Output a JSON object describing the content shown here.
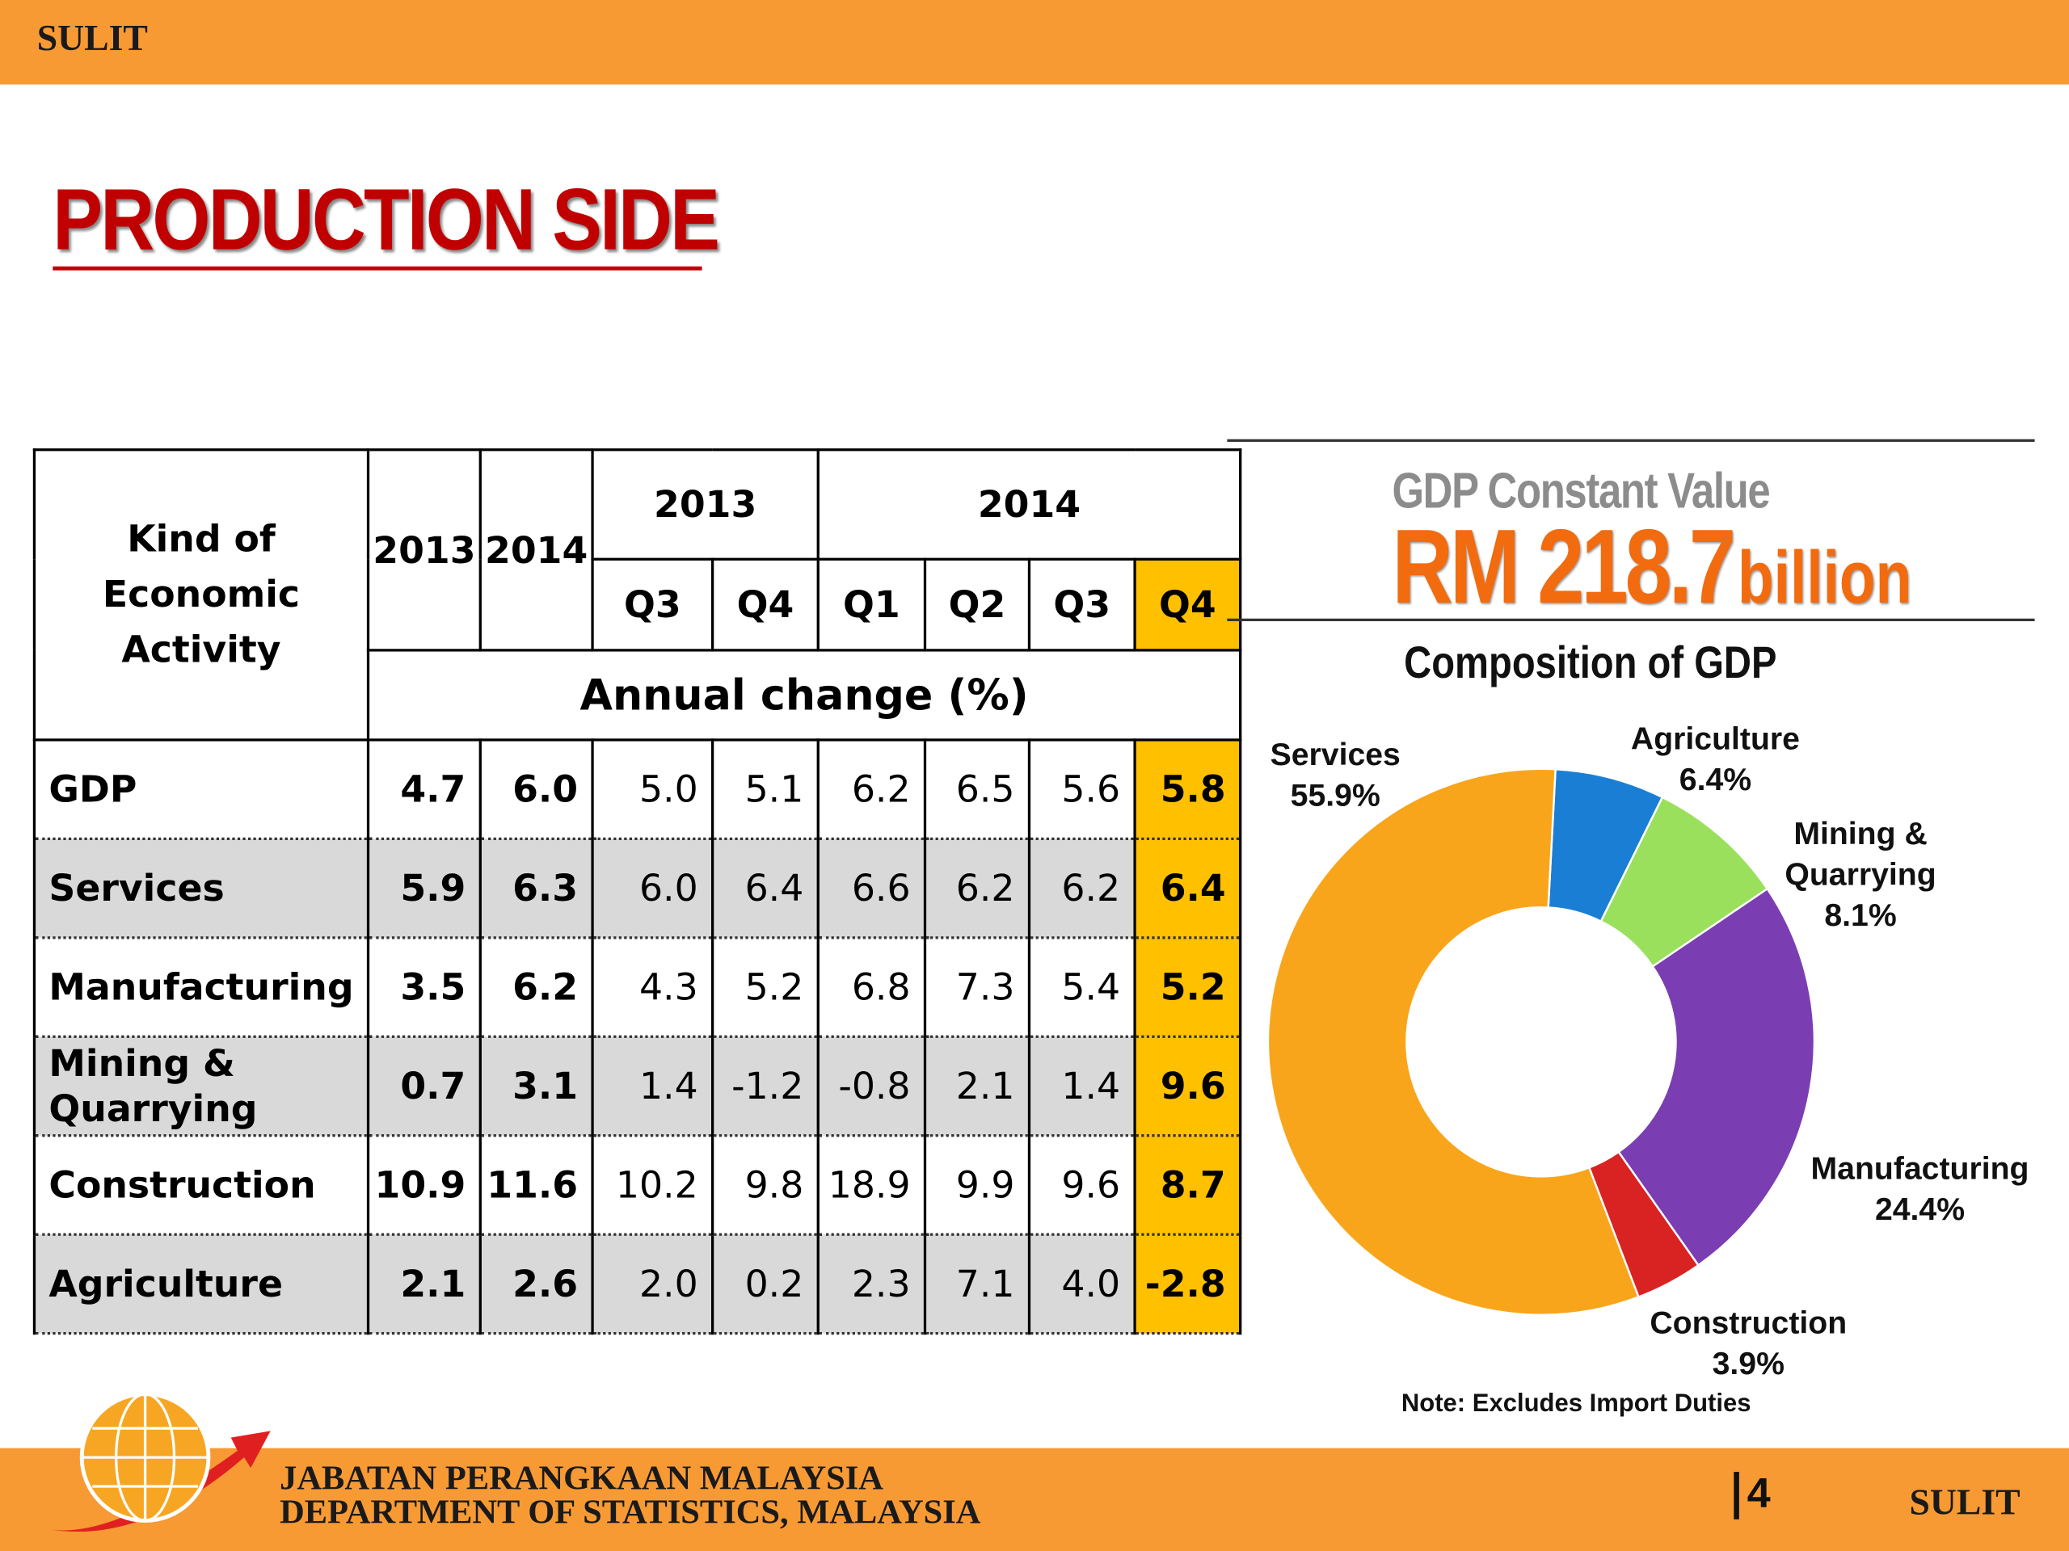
{
  "header": {
    "label": "SULIT"
  },
  "title": "PRODUCTION SIDE",
  "table": {
    "header": {
      "activity": "Kind of Economic Activity",
      "years": [
        "2013",
        "2014"
      ],
      "groups": [
        "2013",
        "2014"
      ],
      "quarters": [
        "Q3",
        "Q4",
        "Q1",
        "Q2",
        "Q3",
        "Q4"
      ],
      "unit": "Annual change (%)"
    },
    "rows": [
      [
        "GDP",
        "4.7",
        "6.0",
        "5.0",
        "5.1",
        "6.2",
        "6.5",
        "5.6",
        "5.8"
      ],
      [
        "Services",
        "5.9",
        "6.3",
        "6.0",
        "6.4",
        "6.6",
        "6.2",
        "6.2",
        "6.4"
      ],
      [
        "Manufacturing",
        "3.5",
        "6.2",
        "4.3",
        "5.2",
        "6.8",
        "7.3",
        "5.4",
        "5.2"
      ],
      [
        "Mining & Quarrying",
        "0.7",
        "3.1",
        "1.4",
        "-1.2",
        "-0.8",
        "2.1",
        "1.4",
        "9.6"
      ],
      [
        "Construction",
        "10.9",
        "11.6",
        "10.2",
        "9.8",
        "18.9",
        "9.9",
        "9.6",
        "8.7"
      ],
      [
        "Agriculture",
        "2.1",
        "2.6",
        "2.0",
        "0.2",
        "2.3",
        "7.1",
        "4.0",
        "-2.8"
      ]
    ]
  },
  "panel": {
    "heading": "GDP Constant Value",
    "value": "RM 218.7",
    "unit": "billion"
  },
  "chart_data": {
    "type": "donut",
    "title": "Composition of GDP",
    "categories": [
      "Agriculture",
      "Mining & Quarrying",
      "Manufacturing",
      "Construction",
      "Services"
    ],
    "values": [
      6.4,
      8.1,
      24.4,
      3.9,
      55.9
    ],
    "value_labels": [
      "6.4%",
      "8.1%",
      "24.4%",
      "3.9%",
      "55.9%"
    ],
    "colors": [
      "#1a7fd4",
      "#9ae05c",
      "#7b3db2",
      "#d92222",
      "#f9a51b"
    ],
    "note": "Note: Excludes Import Duties"
  },
  "footer": {
    "lines": [
      "JABATAN PERANGKAAN MALAYSIA",
      "DEPARTMENT OF STATISTICS, MALAYSIA"
    ],
    "page": "4",
    "label": "SULIT"
  }
}
